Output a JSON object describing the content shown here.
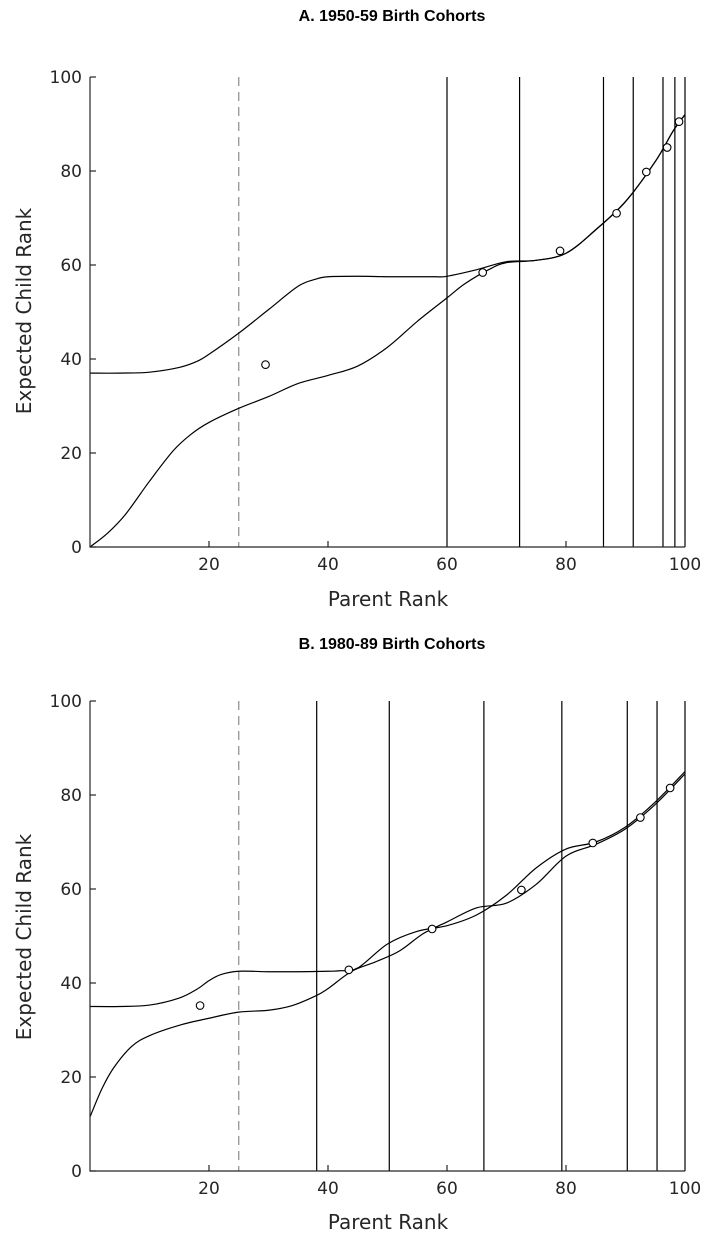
{
  "chart_data": [
    {
      "type": "line",
      "title": "A. 1950-59 Birth Cohorts",
      "xlabel": "Parent Rank",
      "ylabel": "Expected Child Rank",
      "xlim": [
        0,
        100
      ],
      "ylim": [
        0,
        100
      ],
      "xticks": [
        20,
        40,
        60,
        80,
        100
      ],
      "yticks": [
        0,
        20,
        40,
        60,
        80,
        100
      ],
      "grid": false,
      "dashed_vertical_x": 25,
      "vertical_lines_x": [
        60,
        72.2,
        86.3,
        91.3,
        96.3,
        98.3,
        100
      ],
      "series": [
        {
          "x": [
            0,
            5,
            10,
            15,
            18,
            20,
            25,
            30,
            35,
            38,
            40,
            45,
            50,
            55,
            58,
            60,
            65,
            70,
            75,
            80,
            85,
            90,
            95,
            98,
            100
          ],
          "y": [
            37,
            37,
            37.2,
            38.2,
            39.5,
            41,
            45.5,
            50.5,
            55.5,
            57,
            57.5,
            57.6,
            57.5,
            57.5,
            57.5,
            57.6,
            59,
            60.7,
            61,
            62.5,
            67.5,
            73.5,
            82,
            88.5,
            92
          ]
        },
        {
          "x": [
            0,
            3,
            6,
            10,
            14,
            17,
            20,
            25,
            30,
            35,
            40,
            45,
            50,
            55,
            60,
            63,
            67,
            70,
            75,
            80,
            85,
            90,
            95,
            98,
            100
          ],
          "y": [
            0,
            3,
            7,
            14,
            20.5,
            24,
            26.5,
            29.5,
            32,
            34.8,
            36.5,
            38.5,
            42.5,
            48,
            53,
            56,
            59,
            60.5,
            61,
            62.5,
            67.5,
            73.5,
            82,
            88.5,
            92
          ]
        }
      ],
      "points": {
        "x": [
          29.5,
          66,
          79,
          88.5,
          93.5,
          97,
          99
        ],
        "y": [
          38.8,
          58.4,
          63,
          71,
          79.8,
          85,
          90.5
        ]
      }
    },
    {
      "type": "line",
      "title": "B. 1980-89 Birth Cohorts",
      "xlabel": "Parent Rank",
      "ylabel": "Expected Child Rank",
      "xlim": [
        0,
        100
      ],
      "ylim": [
        0,
        100
      ],
      "xticks": [
        20,
        40,
        60,
        80,
        100
      ],
      "yticks": [
        0,
        20,
        40,
        60,
        80,
        100
      ],
      "grid": false,
      "dashed_vertical_x": 25,
      "vertical_lines_x": [
        38.1,
        50.3,
        66.2,
        79.3,
        90.3,
        95.3,
        100
      ],
      "series": [
        {
          "x": [
            0,
            5,
            10,
            15,
            18,
            20,
            22,
            25,
            30,
            35,
            40,
            42,
            45,
            50,
            55,
            60,
            65,
            70,
            75,
            80,
            85,
            90,
            95,
            100
          ],
          "y": [
            35,
            35,
            35.3,
            36.8,
            38.7,
            40.5,
            41.8,
            42.5,
            42.4,
            42.4,
            42.5,
            42.6,
            43.2,
            48.3,
            51,
            52.2,
            54.5,
            58.7,
            64.5,
            68.5,
            70,
            73.2,
            78.5,
            85
          ]
        },
        {
          "x": [
            0,
            2,
            4,
            7,
            10,
            15,
            20,
            25,
            30,
            34,
            38,
            40,
            44,
            48,
            52,
            56,
            60,
            65,
            70,
            75,
            80,
            85,
            90,
            95,
            100
          ],
          "y": [
            11.5,
            17.5,
            22,
            26.5,
            28.8,
            31,
            32.5,
            33.8,
            34.2,
            35.2,
            37.3,
            38.8,
            42.5,
            44.5,
            46.8,
            50.5,
            53,
            56,
            57,
            61,
            67,
            69.5,
            72.8,
            78,
            84.5
          ]
        }
      ],
      "points": {
        "x": [
          18.5,
          43.5,
          57.5,
          72.5,
          84.5,
          92.5,
          97.5
        ],
        "y": [
          35.2,
          42.8,
          51.5,
          59.8,
          69.8,
          75.2,
          81.5
        ]
      }
    }
  ]
}
